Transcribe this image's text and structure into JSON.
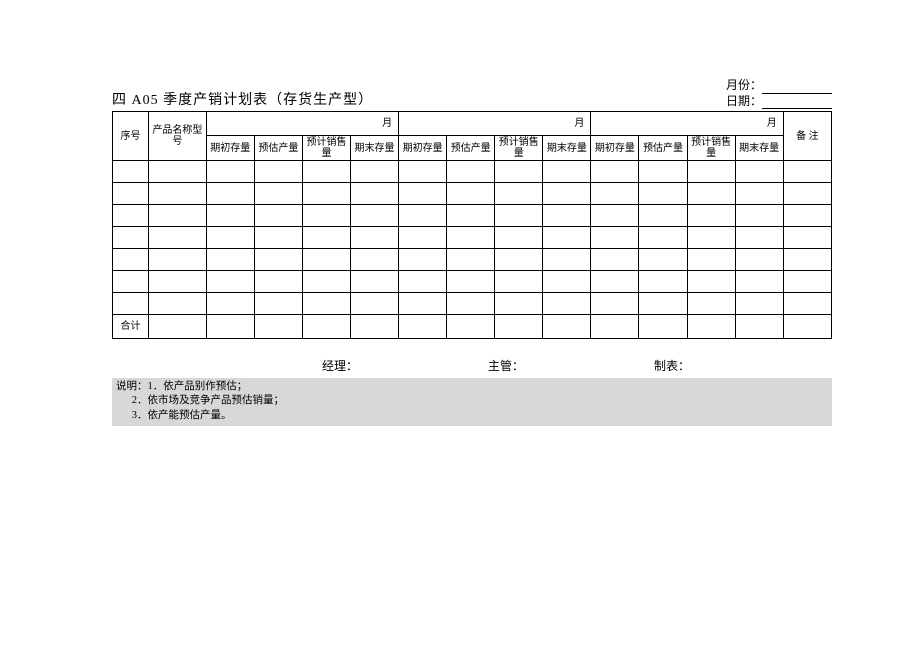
{
  "title": "四 A05   季度产销计划表（存货生产型）",
  "meta": {
    "month_label": "月份：",
    "date_label": "日期："
  },
  "header": {
    "seq": "序号",
    "product": "产品名称型　　号",
    "month_suffix": "月",
    "sub": {
      "begin_stock": "期初存量",
      "est_output": "预估产量",
      "plan_sales": "预计销售量",
      "end_stock": "期末存量",
      "plan_sales_alt": "预计销售量"
    },
    "remark": "备  注",
    "total": "合计"
  },
  "body_rows": 7,
  "signatures": {
    "manager": "经理：",
    "supervisor": "主管：",
    "preparer": "制表："
  },
  "notes": {
    "label": "说明：",
    "items": [
      "1．依产品别作预估；",
      "2．依市场及竞争产品预估销量；",
      "3．依产能预估产量。"
    ]
  },
  "style": {
    "bg": "#ffffff",
    "notes_bg": "#d8d8d8",
    "border": "#000000",
    "title_fontsize": 14,
    "body_fontsize": 10
  }
}
